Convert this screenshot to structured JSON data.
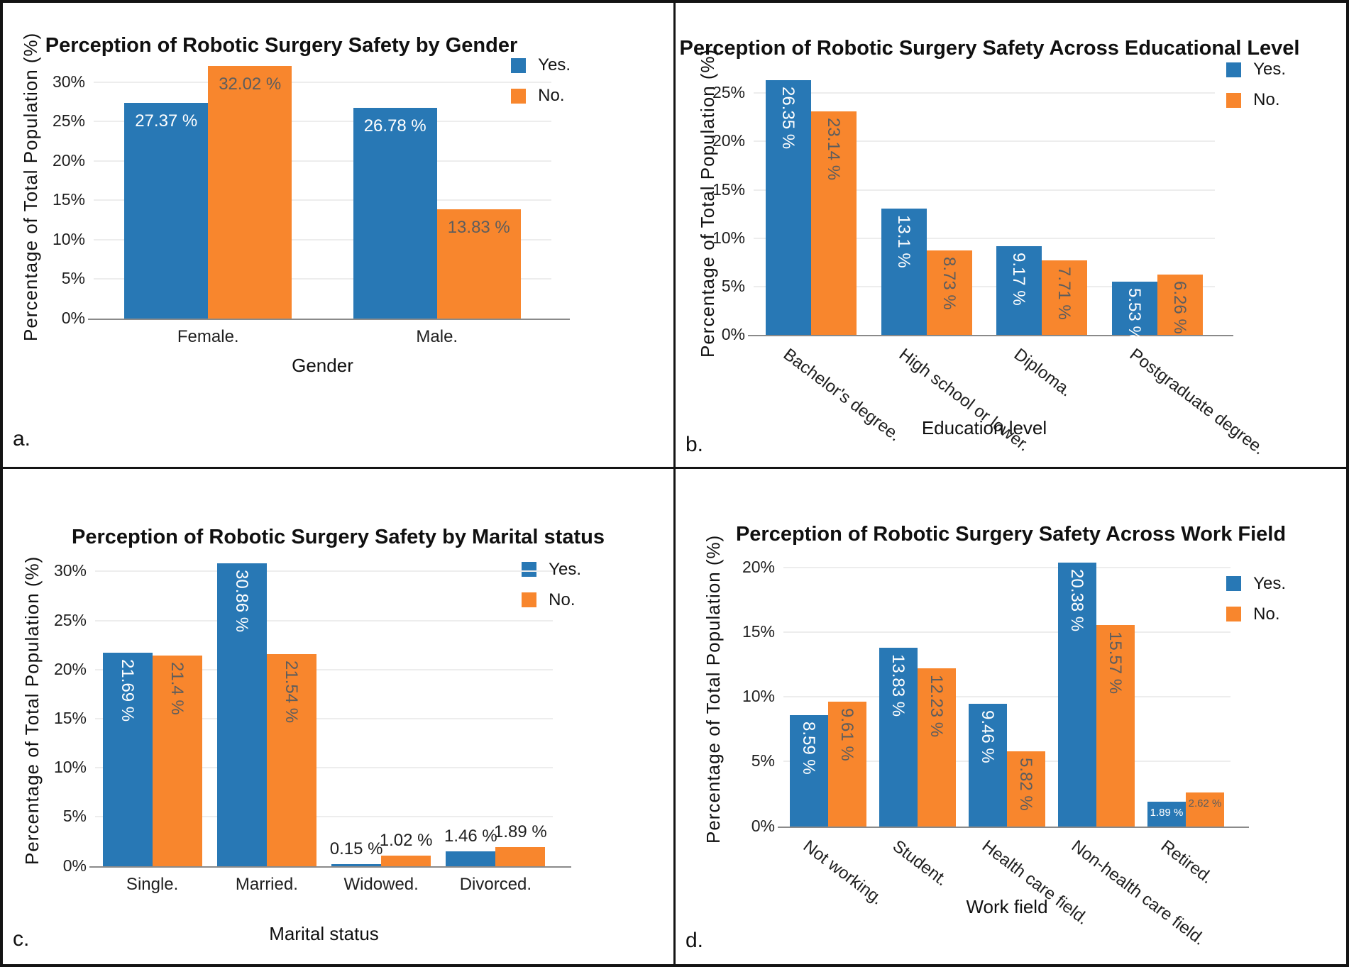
{
  "figure": {
    "background": "#ffffff",
    "border_color": "#141414"
  },
  "colors": {
    "yes": "#2878b5",
    "no": "#f8862d"
  },
  "legend": {
    "yes_label": "Yes.",
    "no_label": "No."
  },
  "chart_data": [
    {
      "panel_label": "a.",
      "type": "bar",
      "title": "Perception of Robotic Surgery Safety by Gender",
      "xlabel": "Gender",
      "ylabel": "Percentage of Total Population (%)",
      "categories": [
        "Female.",
        "Male."
      ],
      "yticks": [
        0,
        5,
        10,
        15,
        20,
        25,
        30
      ],
      "ylim": [
        0,
        33.5
      ],
      "grid": true,
      "legend_position": "top-right",
      "cat_rotation": 0,
      "series": [
        {
          "name": "Yes.",
          "color": "#2878b5",
          "label_color": "#ffffff",
          "values": [
            27.37,
            26.78
          ],
          "labels": [
            "27.37 %",
            "26.78 %"
          ],
          "label_modes": [
            "hv",
            "hv"
          ]
        },
        {
          "name": "No.",
          "color": "#f8862d",
          "label_color": "#5d5d5d",
          "values": [
            32.02,
            13.83
          ],
          "labels": [
            "32.02 %",
            "13.83 %"
          ],
          "label_modes": [
            "hv",
            "hv"
          ]
        }
      ]
    },
    {
      "panel_label": "b.",
      "type": "bar",
      "title": "Perception of Robotic Surgery Safety Across Educational Level",
      "xlabel": "Education level",
      "ylabel": "Percentage of Total Population (%)",
      "categories": [
        "Bachelor's degree.",
        "High school or lower.",
        "Diploma.",
        "Postgraduate degree."
      ],
      "yticks": [
        0,
        5,
        10,
        15,
        20,
        25
      ],
      "ylim": [
        0,
        27.3
      ],
      "grid": true,
      "legend_position": "top-right",
      "cat_rotation": 37,
      "series": [
        {
          "name": "Yes.",
          "color": "#2878b5",
          "label_color": "#ffffff",
          "values": [
            26.35,
            13.1,
            9.17,
            5.53
          ],
          "labels": [
            "26.35 %",
            "13.1 %",
            "9.17 %",
            "5.53 %"
          ],
          "label_modes": [
            "vv",
            "vv",
            "vv",
            "vv"
          ]
        },
        {
          "name": "No.",
          "color": "#f8862d",
          "label_color": "#5d5d5d",
          "values": [
            23.14,
            8.73,
            7.71,
            6.26
          ],
          "labels": [
            "23.14 %",
            "8.73 %",
            "7.71 %",
            "6.26 %"
          ],
          "label_modes": [
            "vv",
            "vv",
            "vv",
            "vv"
          ]
        }
      ]
    },
    {
      "panel_label": "c.",
      "type": "bar",
      "title": "Perception of Robotic Surgery Safety by Marital status",
      "xlabel": "Marital status",
      "ylabel": "Percentage of Total Population (%)",
      "categories": [
        "Single.",
        "Married.",
        "Widowed.",
        "Divorced."
      ],
      "yticks": [
        0,
        5,
        10,
        15,
        20,
        25,
        30
      ],
      "ylim": [
        0,
        31.8
      ],
      "grid": true,
      "legend_position": "top-right",
      "cat_rotation": 0,
      "series": [
        {
          "name": "Yes.",
          "color": "#2878b5",
          "label_color": "#ffffff",
          "values": [
            21.69,
            30.86,
            0.15,
            1.46
          ],
          "labels": [
            "21.69 %",
            "30.86 %",
            "0.15 %",
            "1.46 %"
          ],
          "label_modes": [
            "vv",
            "vv",
            "above",
            "above"
          ]
        },
        {
          "name": "No.",
          "color": "#f8862d",
          "label_color": "#5d5d5d",
          "values": [
            21.4,
            21.54,
            1.02,
            1.89
          ],
          "labels": [
            "21.4 %",
            "21.54 %",
            "1.02 %",
            "1.89 %"
          ],
          "label_modes": [
            "vv",
            "vv",
            "above",
            "above"
          ]
        }
      ]
    },
    {
      "panel_label": "d.",
      "type": "bar",
      "title": "Perception of Robotic Surgery Safety Across Work Field",
      "xlabel": "Work field",
      "ylabel": "Percentage of Total Population (%)",
      "categories": [
        "Not working.",
        "Student.",
        "Health care field.",
        "Non-health care field.",
        "Retired."
      ],
      "yticks": [
        0,
        5,
        10,
        15,
        20
      ],
      "ylim": [
        0,
        21.3
      ],
      "grid": true,
      "legend_position": "top-right",
      "cat_rotation": 37,
      "series": [
        {
          "name": "Yes.",
          "color": "#2878b5",
          "label_color": "#ffffff",
          "values": [
            8.59,
            13.83,
            9.46,
            20.38,
            1.89
          ],
          "labels": [
            "8.59 %",
            "13.83 %",
            "9.46 %",
            "20.38 %",
            "1.89 %"
          ],
          "label_modes": [
            "vv",
            "vv",
            "vv",
            "vv",
            "hs"
          ]
        },
        {
          "name": "No.",
          "color": "#f8862d",
          "label_color": "#5d5d5d",
          "values": [
            9.61,
            12.23,
            5.82,
            15.57,
            2.62
          ],
          "labels": [
            "9.61 %",
            "12.23 %",
            "5.82 %",
            "15.57 %",
            "2.62 %"
          ],
          "label_modes": [
            "vv",
            "vv",
            "vv",
            "vv",
            "hs"
          ]
        }
      ]
    }
  ]
}
